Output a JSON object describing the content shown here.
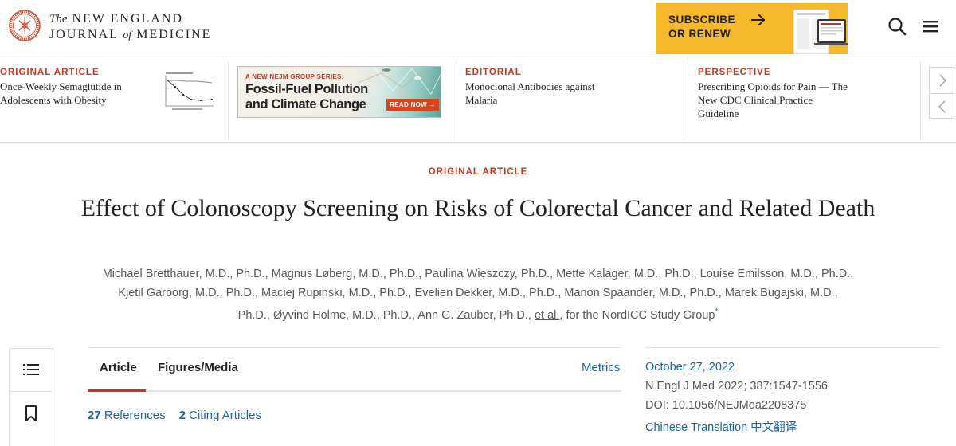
{
  "header": {
    "logo_line1_the": "The",
    "logo_line1": "NEW ENGLAND",
    "logo_line2_a": "JOURNAL",
    "logo_line2_of": "of",
    "logo_line2_b": "MEDICINE",
    "subscribe_line1": "SUBSCRIBE",
    "subscribe_line2": "OR RENEW",
    "icons": [
      "seal-logo-icon",
      "arrow-right-icon",
      "search-icon",
      "hamburger-menu-icon"
    ]
  },
  "strip": {
    "items": [
      {
        "kicker": "ORIGINAL ARTICLE",
        "title": "Once-Weekly Semaglutide in Adolescents with Obesity"
      },
      {
        "kicker": "EDITORIAL",
        "title": "Monoclonal Antibodies against Malaria"
      },
      {
        "kicker": "PERSPECTIVE",
        "title": "Prescribing Opioids for Pain — The New CDC Clinical Practice Guideline"
      }
    ],
    "ad": {
      "kicker": "A NEW NEJM GROUP SERIES:",
      "title_line1": "Fossil-Fuel Pollution",
      "title_line2": "and Climate Change",
      "button": "READ NOW →"
    }
  },
  "article": {
    "kicker": "ORIGINAL ARTICLE",
    "title": "Effect of Colonoscopy Screening on Risks of Colorectal Cancer and Related Death",
    "authors_line1": "Michael Bretthauer, M.D., Ph.D., Magnus Løberg, M.D., Ph.D., Paulina Wieszczy, Ph.D., Mette Kalager, M.D., Ph.D., Louise Emilsson, M.D., Ph.D.,",
    "authors_line2": "Kjetil Garborg, M.D., Ph.D., Maciej Rupinski, M.D., Ph.D., Evelien Dekker, M.D., Ph.D., Manon Spaander, M.D., Ph.D., Marek Bugajski, M.D.,",
    "authors_line3_pre": "Ph.D., Øyvind Holme, M.D., Ph.D., Ann G. Zauber, Ph.D.,",
    "authors_etal": "et al.",
    "authors_line3_post": ", for the NordICC Study Group",
    "authors_sup": "*"
  },
  "tabs": {
    "items": [
      "Article",
      "Figures/Media"
    ],
    "active": "Article",
    "metrics": "Metrics"
  },
  "stats": {
    "references_count": "27",
    "references_label": "References",
    "citing_count": "2",
    "citing_label": "Citing Articles"
  },
  "info": {
    "date": "October 27, 2022",
    "citation": "N Engl J Med 2022; 387:1547-1556",
    "doi": "DOI: 10.1056/NEJMoa2208375",
    "translation": "Chinese Translation 中文翻译"
  },
  "sidebar": {
    "icons": [
      "table-of-contents-icon",
      "bookmark-icon"
    ]
  },
  "colors": {
    "accent_red": "#c7361d",
    "link_blue": "#1c62a6",
    "subscribe_yellow": "#f6b92b",
    "text_dark": "#222222",
    "text_gray": "#555555"
  }
}
